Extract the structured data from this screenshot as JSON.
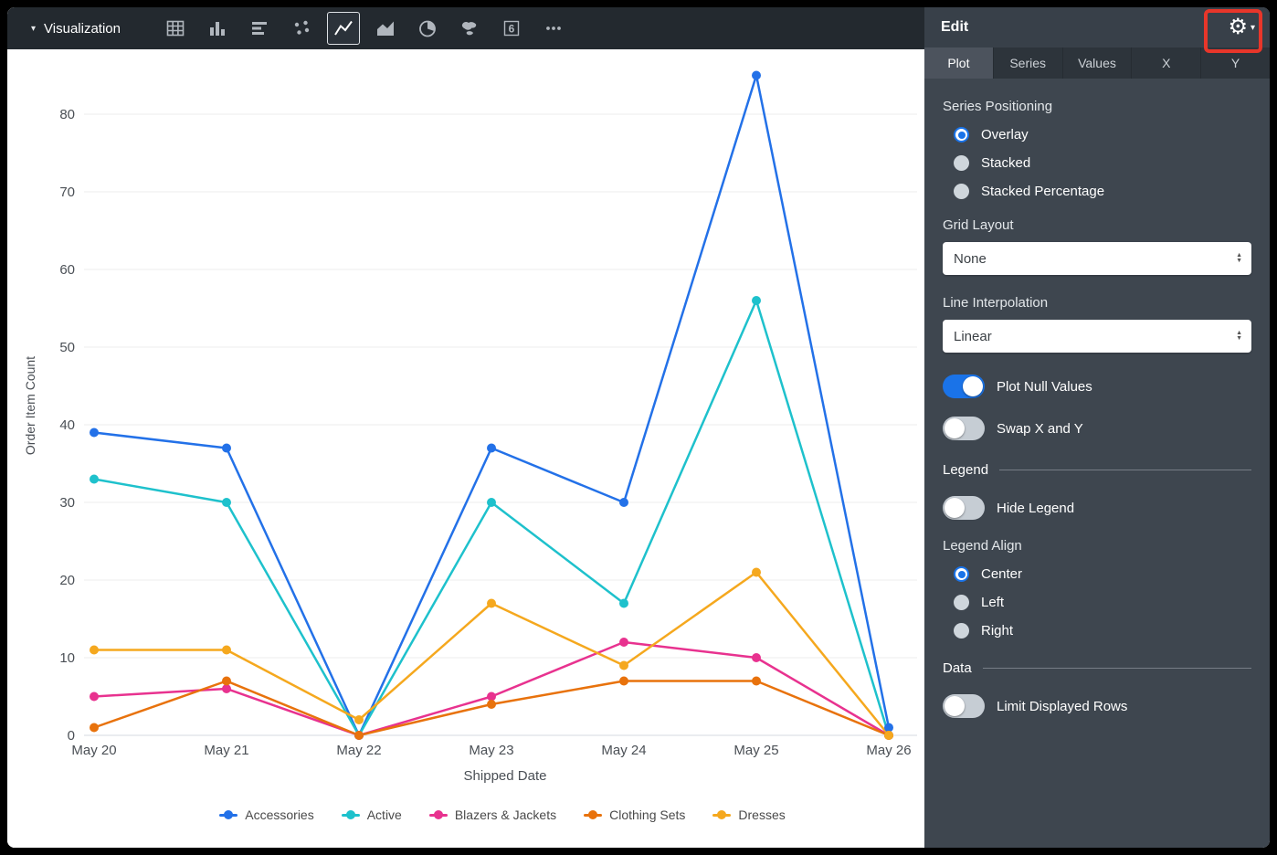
{
  "accent": "#1A73E8",
  "annotation": {
    "highlight_color": "#E8362A"
  },
  "toolbar": {
    "title": "Visualization",
    "collapse_icon": "▾",
    "icons": [
      "table",
      "column-chart",
      "bar-chart",
      "scatter",
      "line-chart",
      "area-chart",
      "pie-chart",
      "map",
      "single-value",
      "more"
    ],
    "selected_icon": "line-chart",
    "single_value_glyph": "6"
  },
  "panel": {
    "header": {
      "title": "Edit",
      "gear_icon": "⚙",
      "caret": "▾"
    },
    "tabs": [
      {
        "label": "Plot",
        "active": true
      },
      {
        "label": "Series",
        "active": false
      },
      {
        "label": "Values",
        "active": false
      },
      {
        "label": "X",
        "active": false
      },
      {
        "label": "Y",
        "active": false
      }
    ],
    "series_positioning": {
      "label": "Series Positioning",
      "options": [
        {
          "label": "Overlay",
          "selected": true
        },
        {
          "label": "Stacked",
          "selected": false
        },
        {
          "label": "Stacked Percentage",
          "selected": false
        }
      ]
    },
    "grid_layout": {
      "label": "Grid Layout",
      "value": "None"
    },
    "line_interpolation": {
      "label": "Line Interpolation",
      "value": "Linear"
    },
    "plot_null_values": {
      "label": "Plot Null Values",
      "on": true
    },
    "swap_x_y": {
      "label": "Swap X and Y",
      "on": false
    },
    "legend_section": {
      "title": "Legend"
    },
    "hide_legend": {
      "label": "Hide Legend",
      "on": false
    },
    "legend_align": {
      "label": "Legend Align",
      "options": [
        {
          "label": "Center",
          "selected": true
        },
        {
          "label": "Left",
          "selected": false
        },
        {
          "label": "Right",
          "selected": false
        }
      ]
    },
    "data_section": {
      "title": "Data"
    },
    "limit_displayed_rows": {
      "label": "Limit Displayed Rows",
      "on": false
    }
  },
  "chart_data": {
    "type": "line",
    "title": "",
    "xlabel": "Shipped Date",
    "ylabel": "Order Item Count",
    "x": [
      "May 20",
      "May 21",
      "May 22",
      "May 23",
      "May 24",
      "May 25",
      "May 26"
    ],
    "series": [
      {
        "name": "Accessories",
        "color": "#2371E8",
        "values": [
          39,
          37,
          0,
          37,
          30,
          85,
          1
        ]
      },
      {
        "name": "Active",
        "color": "#1EC1CC",
        "values": [
          33,
          30,
          0,
          30,
          17,
          56,
          0
        ]
      },
      {
        "name": "Blazers & Jackets",
        "color": "#E8328F",
        "values": [
          5,
          6,
          0,
          5,
          12,
          10,
          0
        ]
      },
      {
        "name": "Clothing Sets",
        "color": "#E8720C",
        "values": [
          1,
          7,
          0,
          4,
          7,
          7,
          0
        ]
      },
      {
        "name": "Dresses",
        "color": "#F5A81E",
        "values": [
          11,
          11,
          2,
          17,
          9,
          21,
          0
        ]
      }
    ],
    "ylim": [
      0,
      85
    ],
    "yticks": [
      0,
      10,
      20,
      30,
      40,
      50,
      60,
      70,
      80
    ],
    "grid": true,
    "legend_position": "bottom"
  }
}
